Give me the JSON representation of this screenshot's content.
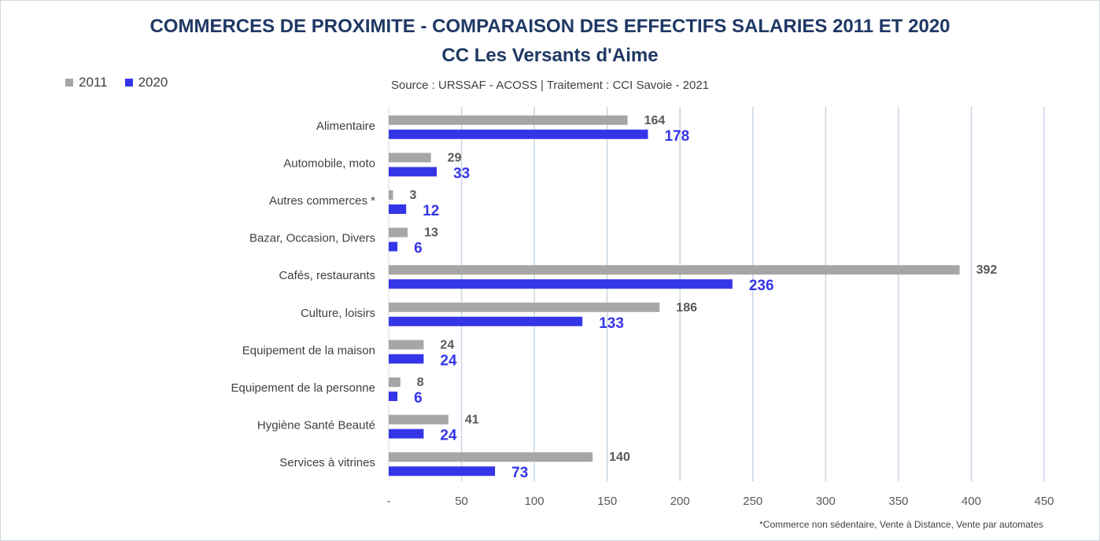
{
  "chart_data": {
    "type": "bar",
    "orientation": "horizontal",
    "title": "COMMERCES DE PROXIMITE - COMPARAISON DES EFFECTIFS SALARIES 2011 ET 2020",
    "subtitle": "CC Les Versants d'Aime",
    "source": "Source  : URSSAF - ACOSS  |  Traitement : CCI Savoie - 2021",
    "footnote": "*Commerce non sédentaire, Vente à Distance, Vente par automates",
    "categories": [
      "Alimentaire",
      "Automobile, moto",
      "Autres commerces *",
      "Bazar, Occasion, Divers",
      "Cafés, restaurants",
      "Culture, loisirs",
      "Equipement de la maison",
      "Equipement de la personne",
      "Hygiène Santé Beauté",
      "Services à vitrines"
    ],
    "series": [
      {
        "name": "2011",
        "color": "#a6a6a6",
        "values": [
          164,
          29,
          3,
          13,
          392,
          186,
          24,
          8,
          41,
          140
        ]
      },
      {
        "name": "2020",
        "color": "#3535e8",
        "values": [
          178,
          33,
          12,
          6,
          236,
          133,
          24,
          6,
          24,
          73
        ]
      }
    ],
    "xlim": [
      0,
      450
    ],
    "xticks": [
      0,
      50,
      100,
      150,
      200,
      250,
      300,
      350,
      400,
      450
    ],
    "xtick_labels": [
      "-",
      "50",
      "100",
      "150",
      "200",
      "250",
      "300",
      "350",
      "400",
      "450"
    ],
    "grid": "vertical",
    "legend": "top-left"
  }
}
